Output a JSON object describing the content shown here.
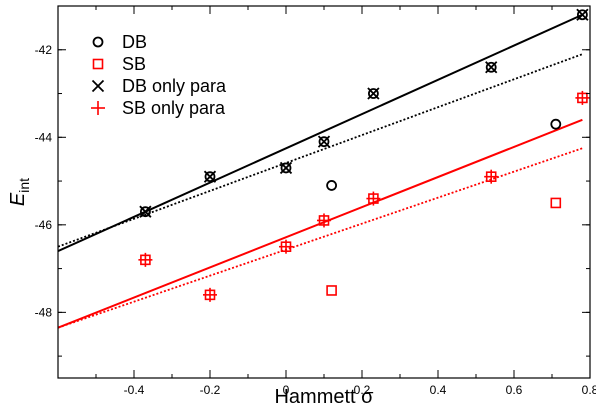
{
  "chart_data": {
    "type": "scatter",
    "xlabel": "Hammett σ",
    "ylabel_main": "E",
    "ylabel_sub": "int",
    "xlim": [
      -0.6,
      0.8
    ],
    "ylim": [
      -49.5,
      -41.0
    ],
    "xticks": [
      -0.4,
      -0.2,
      0,
      0.2,
      0.4,
      0.6,
      0.8
    ],
    "xtick_labels": [
      "-0.4",
      "-0.2",
      "0",
      "0.2",
      "0.4",
      "0.6",
      "0.8"
    ],
    "yticks": [
      -48,
      -46,
      -44,
      -42
    ],
    "ytick_labels": [
      "-48",
      "-46",
      "-44",
      "-42"
    ],
    "grid": false,
    "legend_position": "top-left",
    "series": [
      {
        "name": "DB",
        "marker": "circle",
        "color": "#000000",
        "points": [
          [
            -0.37,
            -45.7
          ],
          [
            -0.2,
            -44.9
          ],
          [
            0,
            -44.7
          ],
          [
            0.1,
            -44.1
          ],
          [
            0.12,
            -45.1
          ],
          [
            0.23,
            -43.0
          ],
          [
            0.54,
            -42.4
          ],
          [
            0.71,
            -43.7
          ],
          [
            0.78,
            -41.2
          ]
        ]
      },
      {
        "name": "SB",
        "marker": "square",
        "color": "#ff0000",
        "points": [
          [
            -0.37,
            -46.8
          ],
          [
            -0.2,
            -47.6
          ],
          [
            0,
            -46.5
          ],
          [
            0.1,
            -45.9
          ],
          [
            0.12,
            -47.5
          ],
          [
            0.23,
            -45.4
          ],
          [
            0.54,
            -44.9
          ],
          [
            0.71,
            -45.5
          ],
          [
            0.78,
            -43.1
          ]
        ]
      },
      {
        "name": "DB only para",
        "marker": "x",
        "color": "#000000",
        "points": [
          [
            -0.37,
            -45.7
          ],
          [
            -0.2,
            -44.9
          ],
          [
            0,
            -44.7
          ],
          [
            0.1,
            -44.1
          ],
          [
            0.23,
            -43.0
          ],
          [
            0.54,
            -42.4
          ],
          [
            0.78,
            -41.2
          ]
        ]
      },
      {
        "name": "SB only para",
        "marker": "plus",
        "color": "#ff0000",
        "points": [
          [
            -0.37,
            -46.8
          ],
          [
            -0.2,
            -47.6
          ],
          [
            0,
            -46.5
          ],
          [
            0.1,
            -45.9
          ],
          [
            0.23,
            -45.4
          ],
          [
            0.54,
            -44.9
          ],
          [
            0.78,
            -43.1
          ]
        ]
      }
    ],
    "fit_lines": [
      {
        "color": "#000000",
        "style": "solid",
        "x": [
          -0.6,
          0.78
        ],
        "y": [
          -46.6,
          -41.2
        ]
      },
      {
        "color": "#000000",
        "style": "dotted",
        "x": [
          -0.6,
          0.78
        ],
        "y": [
          -46.5,
          -42.1
        ]
      },
      {
        "color": "#ff0000",
        "style": "solid",
        "x": [
          -0.6,
          0.78
        ],
        "y": [
          -48.35,
          -43.6
        ]
      },
      {
        "color": "#ff0000",
        "style": "dotted",
        "x": [
          -0.6,
          0.78
        ],
        "y": [
          -48.35,
          -44.25
        ]
      }
    ]
  }
}
